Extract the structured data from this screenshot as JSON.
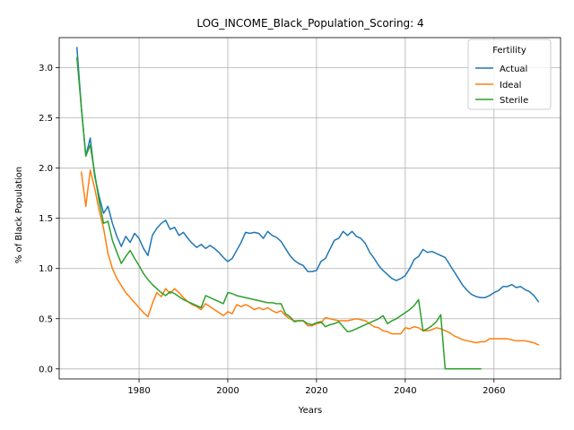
{
  "chart_data": {
    "type": "line",
    "title": "LOG_INCOME_Black_Population_Scoring: 4",
    "xlabel": "Years",
    "ylabel": "% of Black Population",
    "xlim": [
      1962,
      2075
    ],
    "ylim": [
      -0.1,
      3.3
    ],
    "xticks": [
      1980,
      2000,
      2020,
      2040,
      2060
    ],
    "yticks": [
      0.0,
      0.5,
      1.0,
      1.5,
      2.0,
      2.5,
      3.0
    ],
    "ytick_labels": [
      "0.0",
      "0.5",
      "1.0",
      "1.5",
      "2.0",
      "2.5",
      "3.0"
    ],
    "grid": true,
    "legend": {
      "title": "Fertility",
      "placement": "top-right"
    },
    "series": [
      {
        "name": "Actual",
        "color": "#1f77b4",
        "points": [
          [
            1966,
            3.2
          ],
          [
            1967,
            2.6
          ],
          [
            1968,
            2.12
          ],
          [
            1969,
            2.3
          ],
          [
            1970,
            1.92
          ],
          [
            1971,
            1.72
          ],
          [
            1972,
            1.55
          ],
          [
            1973,
            1.62
          ],
          [
            1974,
            1.45
          ],
          [
            1975,
            1.32
          ],
          [
            1976,
            1.22
          ],
          [
            1977,
            1.32
          ],
          [
            1978,
            1.26
          ],
          [
            1979,
            1.35
          ],
          [
            1980,
            1.3
          ],
          [
            1981,
            1.2
          ],
          [
            1982,
            1.13
          ],
          [
            1983,
            1.33
          ],
          [
            1984,
            1.4
          ],
          [
            1985,
            1.45
          ],
          [
            1986,
            1.48
          ],
          [
            1987,
            1.39
          ],
          [
            1988,
            1.41
          ],
          [
            1989,
            1.33
          ],
          [
            1990,
            1.36
          ],
          [
            1991,
            1.3
          ],
          [
            1992,
            1.25
          ],
          [
            1993,
            1.21
          ],
          [
            1994,
            1.24
          ],
          [
            1995,
            1.2
          ],
          [
            1996,
            1.23
          ],
          [
            1997,
            1.2
          ],
          [
            1998,
            1.16
          ],
          [
            1999,
            1.11
          ],
          [
            2000,
            1.07
          ],
          [
            2001,
            1.1
          ],
          [
            2002,
            1.18
          ],
          [
            2003,
            1.26
          ],
          [
            2004,
            1.36
          ],
          [
            2005,
            1.35
          ],
          [
            2006,
            1.36
          ],
          [
            2007,
            1.35
          ],
          [
            2008,
            1.3
          ],
          [
            2009,
            1.37
          ],
          [
            2010,
            1.33
          ],
          [
            2011,
            1.31
          ],
          [
            2012,
            1.27
          ],
          [
            2013,
            1.2
          ],
          [
            2014,
            1.13
          ],
          [
            2015,
            1.08
          ],
          [
            2016,
            1.05
          ],
          [
            2017,
            1.03
          ],
          [
            2018,
            0.97
          ],
          [
            2019,
            0.97
          ],
          [
            2020,
            0.98
          ],
          [
            2021,
            1.07
          ],
          [
            2022,
            1.1
          ],
          [
            2023,
            1.19
          ],
          [
            2024,
            1.28
          ],
          [
            2025,
            1.3
          ],
          [
            2026,
            1.37
          ],
          [
            2027,
            1.33
          ],
          [
            2028,
            1.37
          ],
          [
            2029,
            1.32
          ],
          [
            2030,
            1.3
          ],
          [
            2031,
            1.25
          ],
          [
            2032,
            1.16
          ],
          [
            2033,
            1.1
          ],
          [
            2034,
            1.03
          ],
          [
            2035,
            0.98
          ],
          [
            2036,
            0.94
          ],
          [
            2037,
            0.9
          ],
          [
            2038,
            0.88
          ],
          [
            2039,
            0.9
          ],
          [
            2040,
            0.93
          ],
          [
            2041,
            1.0
          ],
          [
            2042,
            1.09
          ],
          [
            2043,
            1.12
          ],
          [
            2044,
            1.19
          ],
          [
            2045,
            1.16
          ],
          [
            2046,
            1.17
          ],
          [
            2047,
            1.15
          ],
          [
            2048,
            1.13
          ],
          [
            2049,
            1.11
          ],
          [
            2050,
            1.04
          ],
          [
            2051,
            0.97
          ],
          [
            2052,
            0.9
          ],
          [
            2053,
            0.83
          ],
          [
            2054,
            0.78
          ],
          [
            2055,
            0.74
          ],
          [
            2056,
            0.72
          ],
          [
            2057,
            0.71
          ],
          [
            2058,
            0.71
          ],
          [
            2059,
            0.73
          ],
          [
            2060,
            0.76
          ],
          [
            2061,
            0.78
          ],
          [
            2062,
            0.82
          ],
          [
            2063,
            0.82
          ],
          [
            2064,
            0.84
          ],
          [
            2065,
            0.81
          ],
          [
            2066,
            0.82
          ],
          [
            2067,
            0.79
          ],
          [
            2068,
            0.77
          ],
          [
            2069,
            0.73
          ],
          [
            2070,
            0.67
          ]
        ]
      },
      {
        "name": "Ideal",
        "color": "#ff7f0e",
        "points": [
          [
            1967,
            1.96
          ],
          [
            1968,
            1.62
          ],
          [
            1969,
            1.98
          ],
          [
            1970,
            1.8
          ],
          [
            1971,
            1.58
          ],
          [
            1972,
            1.4
          ],
          [
            1973,
            1.15
          ],
          [
            1974,
            1.0
          ],
          [
            1975,
            0.9
          ],
          [
            1976,
            0.83
          ],
          [
            1977,
            0.76
          ],
          [
            1978,
            0.71
          ],
          [
            1979,
            0.66
          ],
          [
            1980,
            0.61
          ],
          [
            1981,
            0.56
          ],
          [
            1982,
            0.52
          ],
          [
            1983,
            0.65
          ],
          [
            1984,
            0.76
          ],
          [
            1985,
            0.72
          ],
          [
            1986,
            0.8
          ],
          [
            1987,
            0.75
          ],
          [
            1988,
            0.8
          ],
          [
            1989,
            0.76
          ],
          [
            1990,
            0.71
          ],
          [
            1991,
            0.67
          ],
          [
            1992,
            0.64
          ],
          [
            1993,
            0.62
          ],
          [
            1994,
            0.59
          ],
          [
            1995,
            0.65
          ],
          [
            1996,
            0.62
          ],
          [
            1997,
            0.59
          ],
          [
            1998,
            0.56
          ],
          [
            1999,
            0.53
          ],
          [
            2000,
            0.57
          ],
          [
            2001,
            0.55
          ],
          [
            2002,
            0.64
          ],
          [
            2003,
            0.62
          ],
          [
            2004,
            0.64
          ],
          [
            2005,
            0.62
          ],
          [
            2006,
            0.59
          ],
          [
            2007,
            0.61
          ],
          [
            2008,
            0.59
          ],
          [
            2009,
            0.61
          ],
          [
            2010,
            0.58
          ],
          [
            2011,
            0.56
          ],
          [
            2012,
            0.58
          ],
          [
            2013,
            0.53
          ],
          [
            2014,
            0.5
          ],
          [
            2015,
            0.48
          ],
          [
            2016,
            0.48
          ],
          [
            2017,
            0.48
          ],
          [
            2018,
            0.43
          ],
          [
            2019,
            0.43
          ],
          [
            2020,
            0.45
          ],
          [
            2021,
            0.46
          ],
          [
            2022,
            0.51
          ],
          [
            2023,
            0.5
          ],
          [
            2024,
            0.49
          ],
          [
            2025,
            0.48
          ],
          [
            2026,
            0.48
          ],
          [
            2027,
            0.48
          ],
          [
            2028,
            0.49
          ],
          [
            2029,
            0.5
          ],
          [
            2030,
            0.49
          ],
          [
            2031,
            0.48
          ],
          [
            2032,
            0.45
          ],
          [
            2033,
            0.42
          ],
          [
            2034,
            0.41
          ],
          [
            2035,
            0.38
          ],
          [
            2036,
            0.37
          ],
          [
            2037,
            0.35
          ],
          [
            2038,
            0.35
          ],
          [
            2039,
            0.35
          ],
          [
            2040,
            0.41
          ],
          [
            2041,
            0.4
          ],
          [
            2042,
            0.42
          ],
          [
            2043,
            0.41
          ],
          [
            2044,
            0.38
          ],
          [
            2045,
            0.38
          ],
          [
            2046,
            0.39
          ],
          [
            2047,
            0.41
          ],
          [
            2048,
            0.4
          ],
          [
            2049,
            0.38
          ],
          [
            2050,
            0.36
          ],
          [
            2051,
            0.33
          ],
          [
            2052,
            0.31
          ],
          [
            2053,
            0.29
          ],
          [
            2054,
            0.28
          ],
          [
            2055,
            0.27
          ],
          [
            2056,
            0.26
          ],
          [
            2057,
            0.27
          ],
          [
            2058,
            0.27
          ],
          [
            2059,
            0.3
          ],
          [
            2060,
            0.3
          ],
          [
            2061,
            0.3
          ],
          [
            2062,
            0.3
          ],
          [
            2063,
            0.3
          ],
          [
            2064,
            0.29
          ],
          [
            2065,
            0.28
          ],
          [
            2066,
            0.28
          ],
          [
            2067,
            0.28
          ],
          [
            2068,
            0.27
          ],
          [
            2069,
            0.26
          ],
          [
            2070,
            0.24
          ]
        ]
      },
      {
        "name": "Sterile",
        "color": "#2ca02c",
        "points": [
          [
            1966,
            3.1
          ],
          [
            1967,
            2.6
          ],
          [
            1968,
            2.12
          ],
          [
            1969,
            2.23
          ],
          [
            1970,
            1.95
          ],
          [
            1971,
            1.67
          ],
          [
            1972,
            1.45
          ],
          [
            1973,
            1.47
          ],
          [
            1974,
            1.28
          ],
          [
            1975,
            1.16
          ],
          [
            1976,
            1.05
          ],
          [
            1977,
            1.12
          ],
          [
            1978,
            1.18
          ],
          [
            1979,
            1.1
          ],
          [
            1980,
            1.03
          ],
          [
            1981,
            0.95
          ],
          [
            1982,
            0.89
          ],
          [
            1983,
            0.84
          ],
          [
            1984,
            0.8
          ],
          [
            1985,
            0.76
          ],
          [
            1986,
            0.73
          ],
          [
            1987,
            0.77
          ],
          [
            1988,
            0.75
          ],
          [
            1989,
            0.72
          ],
          [
            1990,
            0.69
          ],
          [
            1991,
            0.67
          ],
          [
            1992,
            0.65
          ],
          [
            1993,
            0.63
          ],
          [
            1994,
            0.61
          ],
          [
            1995,
            0.73
          ],
          [
            1996,
            0.71
          ],
          [
            1997,
            0.69
          ],
          [
            1998,
            0.67
          ],
          [
            1999,
            0.65
          ],
          [
            2000,
            0.76
          ],
          [
            2001,
            0.75
          ],
          [
            2002,
            0.73
          ],
          [
            2003,
            0.72
          ],
          [
            2004,
            0.71
          ],
          [
            2005,
            0.7
          ],
          [
            2006,
            0.69
          ],
          [
            2007,
            0.68
          ],
          [
            2008,
            0.67
          ],
          [
            2009,
            0.66
          ],
          [
            2010,
            0.66
          ],
          [
            2011,
            0.65
          ],
          [
            2012,
            0.65
          ],
          [
            2013,
            0.55
          ],
          [
            2014,
            0.52
          ],
          [
            2015,
            0.47
          ],
          [
            2016,
            0.48
          ],
          [
            2017,
            0.48
          ],
          [
            2018,
            0.45
          ],
          [
            2019,
            0.44
          ],
          [
            2020,
            0.46
          ],
          [
            2021,
            0.47
          ],
          [
            2022,
            0.42
          ],
          [
            2023,
            0.44
          ],
          [
            2024,
            0.45
          ],
          [
            2025,
            0.47
          ],
          [
            2026,
            0.42
          ],
          [
            2027,
            0.37
          ],
          [
            2028,
            0.38
          ],
          [
            2029,
            0.4
          ],
          [
            2030,
            0.42
          ],
          [
            2031,
            0.44
          ],
          [
            2032,
            0.46
          ],
          [
            2033,
            0.48
          ],
          [
            2034,
            0.5
          ],
          [
            2035,
            0.53
          ],
          [
            2036,
            0.45
          ],
          [
            2037,
            0.48
          ],
          [
            2038,
            0.5
          ],
          [
            2039,
            0.53
          ],
          [
            2040,
            0.56
          ],
          [
            2041,
            0.59
          ],
          [
            2042,
            0.63
          ],
          [
            2043,
            0.69
          ],
          [
            2044,
            0.38
          ],
          [
            2045,
            0.4
          ],
          [
            2046,
            0.43
          ],
          [
            2047,
            0.47
          ],
          [
            2048,
            0.54
          ],
          [
            2049,
            0.0
          ],
          [
            2050,
            0.0
          ],
          [
            2051,
            0.0
          ],
          [
            2052,
            0.0
          ],
          [
            2053,
            0.0
          ],
          [
            2054,
            0.0
          ],
          [
            2055,
            0.0
          ],
          [
            2056,
            0.0
          ],
          [
            2057,
            0.0
          ]
        ]
      }
    ]
  }
}
